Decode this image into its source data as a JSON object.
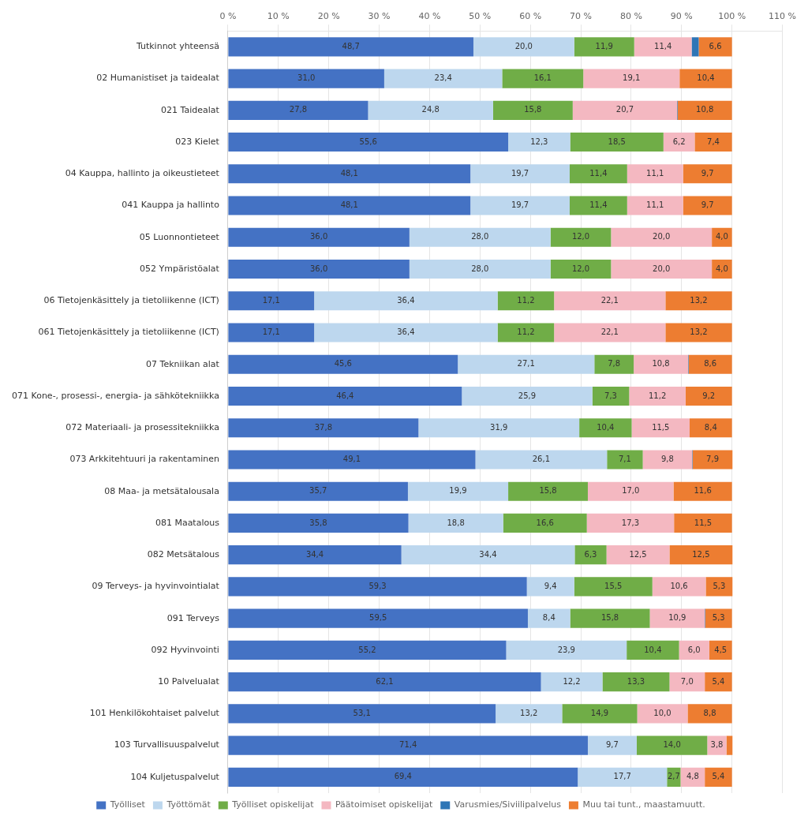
{
  "chart_data": {
    "type": "bar",
    "orientation": "horizontal",
    "stacked": true,
    "grid": true,
    "legend": "bottom",
    "data_labels": true,
    "categories": [
      "Tutkinnot yhteensä",
      "02 Humanistiset ja taidealat",
      "021 Taidealat",
      "023 Kielet",
      "04 Kauppa, hallinto ja oikeustieteet",
      "041 Kauppa ja hallinto",
      "05 Luonnontieteet",
      "052 Ympäristöalat",
      "06 Tietojenkäsittely ja tietoliikenne (ICT)",
      "061 Tietojenkäsittely ja tietoliikenne (ICT)",
      "07 Tekniikan alat",
      "071 Kone-, prosessi-, energia- ja sähkötekniikka",
      "072 Materiaali- ja prosessitekniikka",
      "073 Arkkitehtuuri ja rakentaminen",
      "08 Maa- ja metsätalousala",
      "081 Maatalous",
      "082 Metsätalous",
      "09 Terveys- ja hyvinvointialat",
      "091 Terveys",
      "092 Hyvinvointi",
      "10 Palvelualat",
      "101 Henkilökohtaiset palvelut",
      "103 Turvallisuuspalvelut",
      "104 Kuljetuspalvelut"
    ],
    "xlim": [
      0,
      110
    ],
    "xticks": [
      {
        "value": 0,
        "label": "0 %"
      },
      {
        "value": 10,
        "label": "10 %"
      },
      {
        "value": 20,
        "label": "20 %"
      },
      {
        "value": 30,
        "label": "30 %"
      },
      {
        "value": 40,
        "label": "40 %"
      },
      {
        "value": 50,
        "label": "50 %"
      },
      {
        "value": 60,
        "label": "60 %"
      },
      {
        "value": 70,
        "label": "70 %"
      },
      {
        "value": 80,
        "label": "80 %"
      },
      {
        "value": 90,
        "label": "90 %"
      },
      {
        "value": 100,
        "label": "100 %"
      },
      {
        "value": 110,
        "label": "110 %"
      }
    ],
    "series": [
      {
        "name": "Työlliset",
        "color": "#4472C4",
        "values": [
          48.7,
          31.0,
          27.8,
          55.6,
          48.1,
          48.1,
          36.0,
          36.0,
          17.1,
          17.1,
          45.6,
          46.4,
          37.8,
          49.1,
          35.7,
          35.8,
          34.4,
          59.3,
          59.5,
          55.2,
          62.1,
          53.1,
          71.4,
          69.4
        ],
        "value_labels": [
          "48,7",
          "31,0",
          "27,8",
          "55,6",
          "48,1",
          "48,1",
          "36,0",
          "36,0",
          "17,1",
          "17,1",
          "45,6",
          "46,4",
          "37,8",
          "49,1",
          "35,7",
          "35,8",
          "34,4",
          "59,3",
          "59,5",
          "55,2",
          "62,1",
          "53,1",
          "71,4",
          "69,4"
        ]
      },
      {
        "name": "Työttömät",
        "color": "#BDD7EE",
        "values": [
          20.0,
          23.4,
          24.8,
          12.3,
          19.7,
          19.7,
          28.0,
          28.0,
          36.4,
          36.4,
          27.1,
          25.9,
          31.9,
          26.1,
          19.9,
          18.8,
          34.4,
          9.4,
          8.4,
          23.9,
          12.2,
          13.2,
          9.7,
          17.7
        ],
        "value_labels": [
          "20,0",
          "23,4",
          "24,8",
          "12,3",
          "19,7",
          "19,7",
          "28,0",
          "28,0",
          "36,4",
          "36,4",
          "27,1",
          "25,9",
          "31,9",
          "26,1",
          "19,9",
          "18,8",
          "34,4",
          "9,4",
          "8,4",
          "23,9",
          "12,2",
          "13,2",
          "9,7",
          "17,7"
        ]
      },
      {
        "name": "Työlliset opiskelijat",
        "color": "#70AD47",
        "values": [
          11.9,
          16.1,
          15.8,
          18.5,
          11.4,
          11.4,
          12.0,
          12.0,
          11.2,
          11.2,
          7.8,
          7.3,
          10.4,
          7.1,
          15.8,
          16.6,
          6.3,
          15.5,
          15.8,
          10.4,
          13.3,
          14.9,
          14.0,
          2.7
        ],
        "value_labels": [
          "11,9",
          "16,1",
          "15,8",
          "18,5",
          "11,4",
          "11,4",
          "12,0",
          "12,0",
          "11,2",
          "11,2",
          "7,8",
          "7,3",
          "10,4",
          "7,1",
          "15,8",
          "16,6",
          "6,3",
          "15,5",
          "15,8",
          "10,4",
          "13,3",
          "14,9",
          "14,0",
          "2,7"
        ]
      },
      {
        "name": "Päätoimiset opiskelijat",
        "color": "#F4B8C1",
        "values": [
          11.4,
          19.1,
          20.7,
          6.2,
          11.1,
          11.1,
          20.0,
          20.0,
          22.1,
          22.1,
          10.8,
          11.2,
          11.5,
          9.8,
          17.0,
          17.3,
          12.5,
          10.6,
          10.9,
          6.0,
          7.0,
          10.0,
          3.8,
          4.8
        ],
        "value_labels": [
          "11,4",
          "19,1",
          "20,7",
          "6,2",
          "11,1",
          "11,1",
          "20,0",
          "20,0",
          "22,1",
          "22,1",
          "10,8",
          "11,2",
          "11,5",
          "9,8",
          "17,0",
          "17,3",
          "12,5",
          "10,6",
          "10,9",
          "6,0",
          "7,0",
          "10,0",
          "3,8",
          "4,8"
        ]
      },
      {
        "name": "Varusmies/Siviilipalvelus",
        "color": "#2E75B6",
        "values": [
          1.4,
          0.0,
          0.1,
          0.0,
          0.0,
          0.0,
          0.0,
          0.0,
          0.0,
          0.0,
          0.1,
          0.0,
          0.0,
          0.1,
          0.0,
          0.0,
          0.0,
          0.0,
          0.1,
          0.0,
          0.0,
          0.0,
          0.0,
          0.0
        ],
        "value_labels": [
          null,
          null,
          null,
          null,
          null,
          null,
          null,
          null,
          null,
          null,
          null,
          null,
          null,
          null,
          null,
          null,
          null,
          null,
          null,
          null,
          null,
          null,
          null,
          null
        ]
      },
      {
        "name": "Muu tai tunt., maastamuutt.",
        "color": "#ED7D31",
        "values": [
          6.6,
          10.4,
          10.8,
          7.4,
          9.7,
          9.7,
          4.0,
          4.0,
          13.2,
          13.2,
          8.6,
          9.2,
          8.4,
          7.9,
          11.6,
          11.5,
          12.5,
          5.3,
          5.3,
          4.5,
          5.4,
          8.8,
          1.2,
          5.4
        ],
        "value_labels": [
          "6,6",
          "10,4",
          "10,8",
          "7,4",
          "9,7",
          "9,7",
          "4,0",
          "4,0",
          "13,2",
          "13,2",
          "8,6",
          "9,2",
          "8,4",
          "7,9",
          "11,6",
          "11,5",
          "12,5",
          "5,3",
          "5,3",
          "4,5",
          "5,4",
          "8,8",
          null,
          "5,4"
        ]
      }
    ]
  }
}
